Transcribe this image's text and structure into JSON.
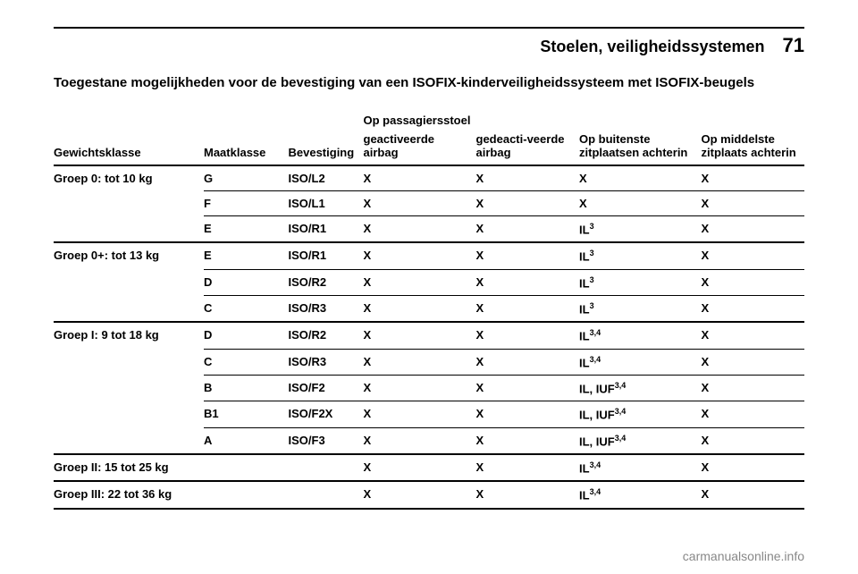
{
  "header": {
    "title": "Stoelen, veiligheidssystemen",
    "page": "71"
  },
  "intro": "Toegestane mogelijkheden voor de bevestiging van een ISOFIX-kinderveiligheidssysteem met ISOFIX-beugels",
  "columns": {
    "weight": "Gewichtsklasse",
    "size": "Maatklasse",
    "fix": "Bevestiging",
    "passenger_span": "Op passagiersstoel",
    "act_airbag": "geactiveerde airbag",
    "deact_airbag": "gedeacti-veerde airbag",
    "outer_rear": "Op buitenste zitplaatsen achterin",
    "middle_rear": "Op middelste zitplaats achterin"
  },
  "groups": [
    {
      "label": "Groep 0: tot 10 kg",
      "rows": [
        {
          "size": "G",
          "fix": "ISO/L2",
          "a": "X",
          "b": "X",
          "c": "X",
          "d": "X"
        },
        {
          "size": "F",
          "fix": "ISO/L1",
          "a": "X",
          "b": "X",
          "c": "X",
          "d": "X"
        },
        {
          "size": "E",
          "fix": "ISO/R1",
          "a": "X",
          "b": "X",
          "c": "IL",
          "csup": "3",
          "d": "X"
        }
      ]
    },
    {
      "label": "Groep 0+: tot 13 kg",
      "rows": [
        {
          "size": "E",
          "fix": "ISO/R1",
          "a": "X",
          "b": "X",
          "c": "IL",
          "csup": "3",
          "d": "X"
        },
        {
          "size": "D",
          "fix": "ISO/R2",
          "a": "X",
          "b": "X",
          "c": "IL",
          "csup": "3",
          "d": "X"
        },
        {
          "size": "C",
          "fix": "ISO/R3",
          "a": "X",
          "b": "X",
          "c": "IL",
          "csup": "3",
          "d": "X"
        }
      ]
    },
    {
      "label": "Groep I: 9 tot 18 kg",
      "rows": [
        {
          "size": "D",
          "fix": "ISO/R2",
          "a": "X",
          "b": "X",
          "c": "IL",
          "csup": "3,4",
          "d": "X"
        },
        {
          "size": "C",
          "fix": "ISO/R3",
          "a": "X",
          "b": "X",
          "c": "IL",
          "csup": "3,4",
          "d": "X"
        },
        {
          "size": "B",
          "fix": "ISO/F2",
          "a": "X",
          "b": "X",
          "c": "IL, IUF",
          "csup": "3,4",
          "d": "X"
        },
        {
          "size": "B1",
          "fix": "ISO/F2X",
          "a": "X",
          "b": "X",
          "c": "IL, IUF",
          "csup": "3,4",
          "d": "X"
        },
        {
          "size": "A",
          "fix": "ISO/F3",
          "a": "X",
          "b": "X",
          "c": "IL, IUF",
          "csup": "3,4",
          "d": "X"
        }
      ]
    },
    {
      "label": "Groep II: 15 tot 25 kg",
      "rows": [
        {
          "size": "",
          "fix": "",
          "a": "X",
          "b": "X",
          "c": "IL",
          "csup": "3,4",
          "d": "X"
        }
      ]
    },
    {
      "label": "Groep III: 22 tot 36 kg",
      "rows": [
        {
          "size": "",
          "fix": "",
          "a": "X",
          "b": "X",
          "c": "IL",
          "csup": "3,4",
          "d": "X"
        }
      ]
    }
  ],
  "watermark": "carmanualsonline.info"
}
